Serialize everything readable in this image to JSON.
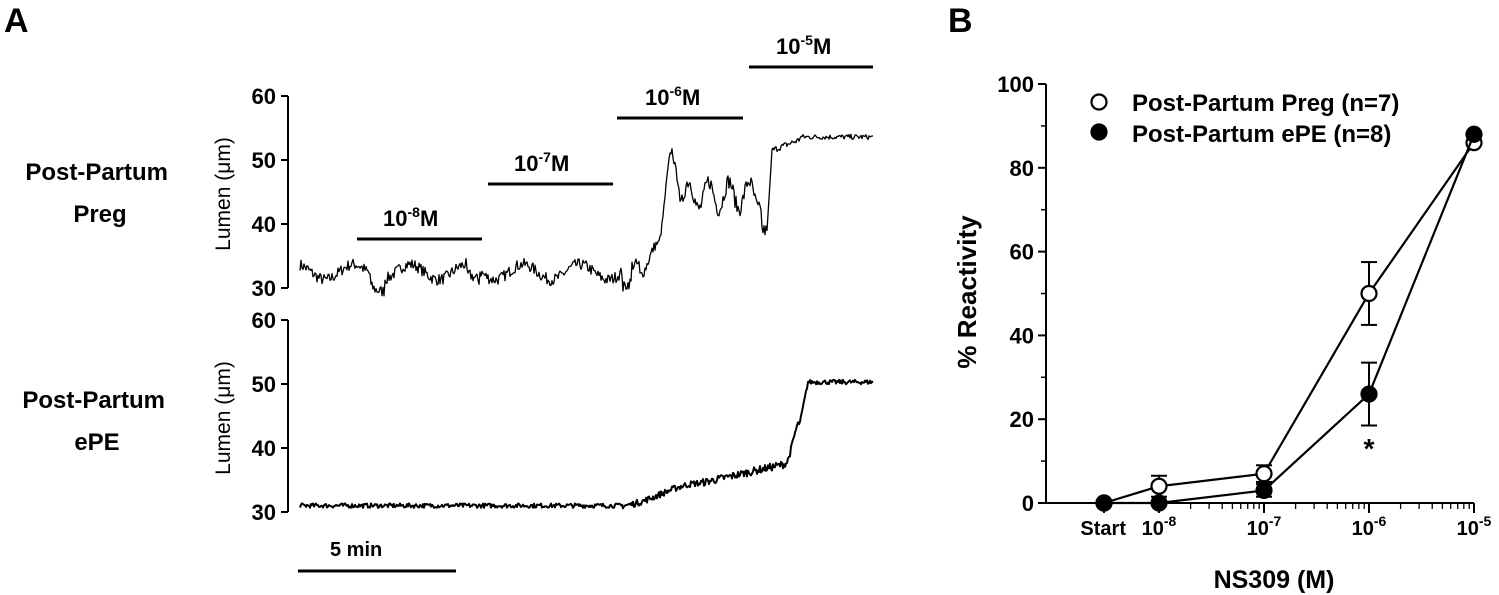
{
  "panel_a": {
    "label": "A",
    "traces": [
      {
        "row_label": [
          "Post-Partum",
          "Preg"
        ],
        "ylabel": "Lumen (μm)",
        "yticks": [
          "60",
          "50",
          "40",
          "30"
        ],
        "ylim": [
          30,
          60
        ]
      },
      {
        "row_label": [
          "Post-Partum",
          "ePE"
        ],
        "ylabel": "Lumen (μm)",
        "yticks": [
          "60",
          "50",
          "40",
          "30"
        ],
        "ylim": [
          30,
          60
        ]
      }
    ],
    "doses": [
      {
        "base": "10",
        "exp": "-8",
        "unit": "M"
      },
      {
        "base": "10",
        "exp": "-7",
        "unit": "M"
      },
      {
        "base": "10",
        "exp": "-6",
        "unit": "M"
      },
      {
        "base": "10",
        "exp": "-5",
        "unit": "M"
      }
    ],
    "scale_bar_label": "5 min"
  },
  "panel_b": {
    "label": "B",
    "significance": "*"
  },
  "chart_data": {
    "type": "line",
    "ylabel": "% Reactivity",
    "xlabel": "NS309 (M)",
    "ylim": [
      0,
      100
    ],
    "yticks": [
      "0",
      "20",
      "40",
      "60",
      "80",
      "100"
    ],
    "categories": [
      "Start",
      "10-8",
      "10-7",
      "10-6",
      "10-5"
    ],
    "xtick_labels": [
      {
        "base": "Start",
        "exp": ""
      },
      {
        "base": "10",
        "exp": "-8"
      },
      {
        "base": "10",
        "exp": "-7"
      },
      {
        "base": "10",
        "exp": "-6"
      },
      {
        "base": "10",
        "exp": "-5"
      }
    ],
    "legend_position": "top-left",
    "series": [
      {
        "name": "Post-Partum Preg (n=7)",
        "marker": "open-circle",
        "values": [
          0,
          4,
          7,
          50,
          86
        ],
        "errors": [
          0,
          2.5,
          2,
          7.5,
          0
        ]
      },
      {
        "name": "Post-Partum ePE (n=8)",
        "marker": "filled-circle",
        "values": [
          0,
          0,
          3,
          26,
          88
        ],
        "errors": [
          0,
          0,
          1.5,
          7.5,
          0
        ]
      }
    ]
  }
}
